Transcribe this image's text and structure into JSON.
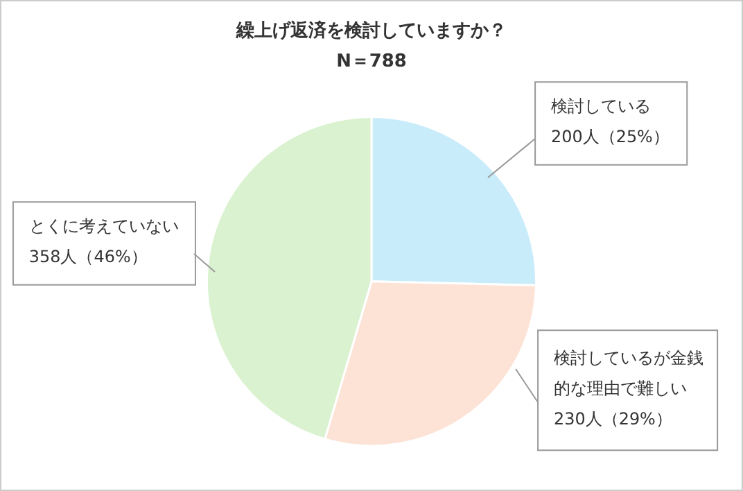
{
  "chart_data": {
    "type": "pie",
    "title": "繰上げ返済を検討していますか？",
    "subtitle": "N＝788",
    "categories": [
      "検討している",
      "検討しているが金銭的な理由で難しい",
      "とくに考えていない"
    ],
    "values": [
      200,
      230,
      358
    ],
    "value_labels": [
      "200人（25%）",
      "230人（29%）",
      "358人（46%）"
    ],
    "colors": [
      "#c9ecfb",
      "#fce3d6",
      "#daf2d0"
    ],
    "legend": false
  }
}
